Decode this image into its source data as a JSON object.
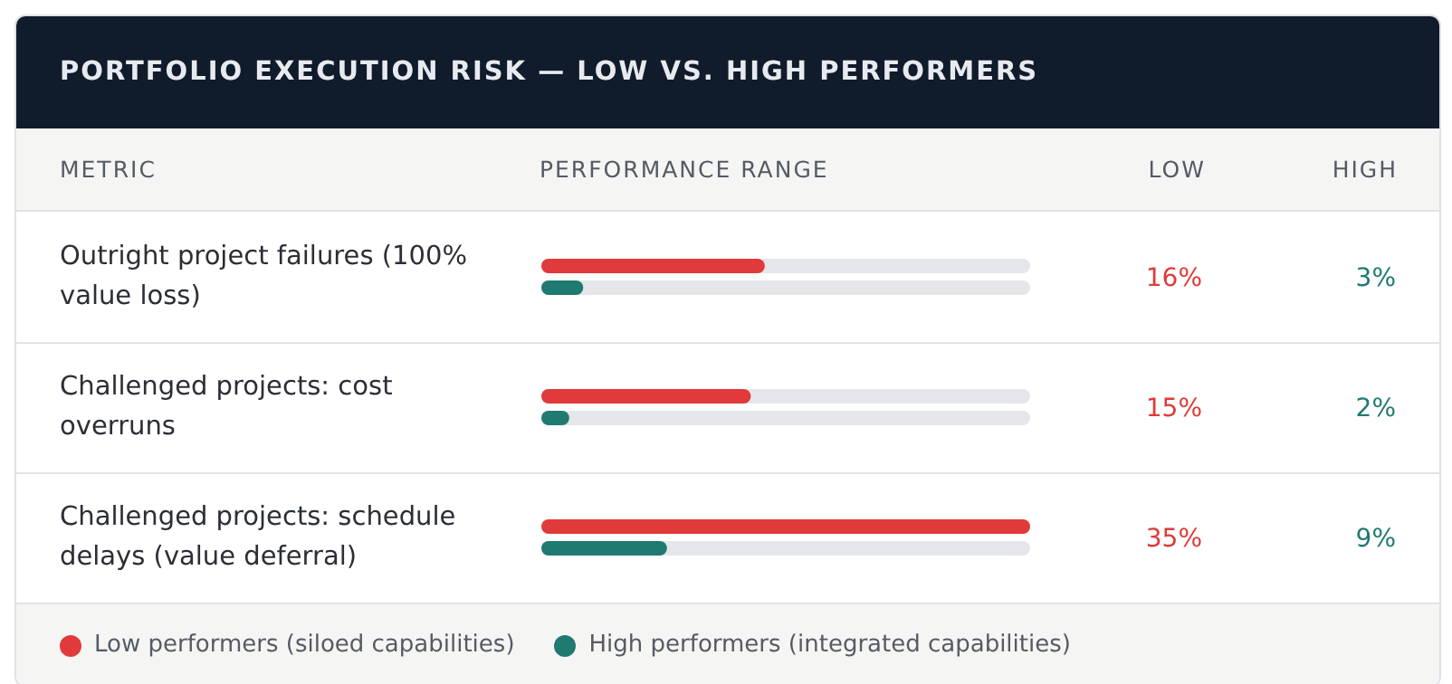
{
  "chart_data": {
    "type": "bar",
    "orientation": "horizontal",
    "title": "PORTFOLIO EXECUTION RISK — LOW VS. HIGH PERFORMERS",
    "xlabel": "PERFORMANCE RANGE",
    "annotations": [
      "METRIC",
      "LOW",
      "HIGH"
    ],
    "categories": [
      "Outright project failures (100% value loss)",
      "Challenged projects: cost overruns",
      "Challenged projects: schedule delays (value deferral)"
    ],
    "series": [
      {
        "name": "Low performers (siloed capabilities)",
        "color": "#e03a3a",
        "values": [
          16,
          15,
          35
        ],
        "value_labels": [
          "16%",
          "15%",
          "35%"
        ]
      },
      {
        "name": "High performers (integrated capabilities)",
        "color": "#1f7a72",
        "values": [
          3,
          2,
          9
        ],
        "value_labels": [
          "3%",
          "2%",
          "9%"
        ]
      }
    ],
    "legend": "bottom"
  }
}
